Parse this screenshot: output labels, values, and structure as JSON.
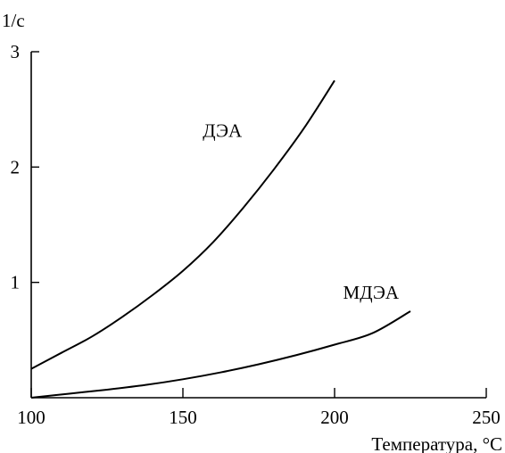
{
  "chart_data": {
    "type": "line",
    "title": "",
    "xlabel": "Температура, °C",
    "ylabel": "1/с",
    "xlim": [
      100,
      250
    ],
    "ylim": [
      0,
      3
    ],
    "x_ticks": [
      "100",
      "150",
      "200",
      "250"
    ],
    "y_ticks": [
      "1",
      "2",
      "3"
    ],
    "grid": false,
    "legend": "none",
    "series": [
      {
        "name": "ДЭА",
        "x": [
          100,
          110,
          120,
          130,
          140,
          150,
          160,
          170,
          180,
          190,
          200
        ],
        "y": [
          0.25,
          0.39,
          0.53,
          0.7,
          0.89,
          1.1,
          1.35,
          1.65,
          1.98,
          2.34,
          2.75
        ]
      },
      {
        "name": "МДЭА",
        "x": [
          100,
          112.5,
          125,
          137.5,
          150,
          162.5,
          175,
          187.5,
          200,
          212.5,
          225
        ],
        "y": [
          0.0,
          0.035,
          0.07,
          0.11,
          0.16,
          0.22,
          0.29,
          0.37,
          0.46,
          0.56,
          0.75
        ]
      }
    ]
  }
}
